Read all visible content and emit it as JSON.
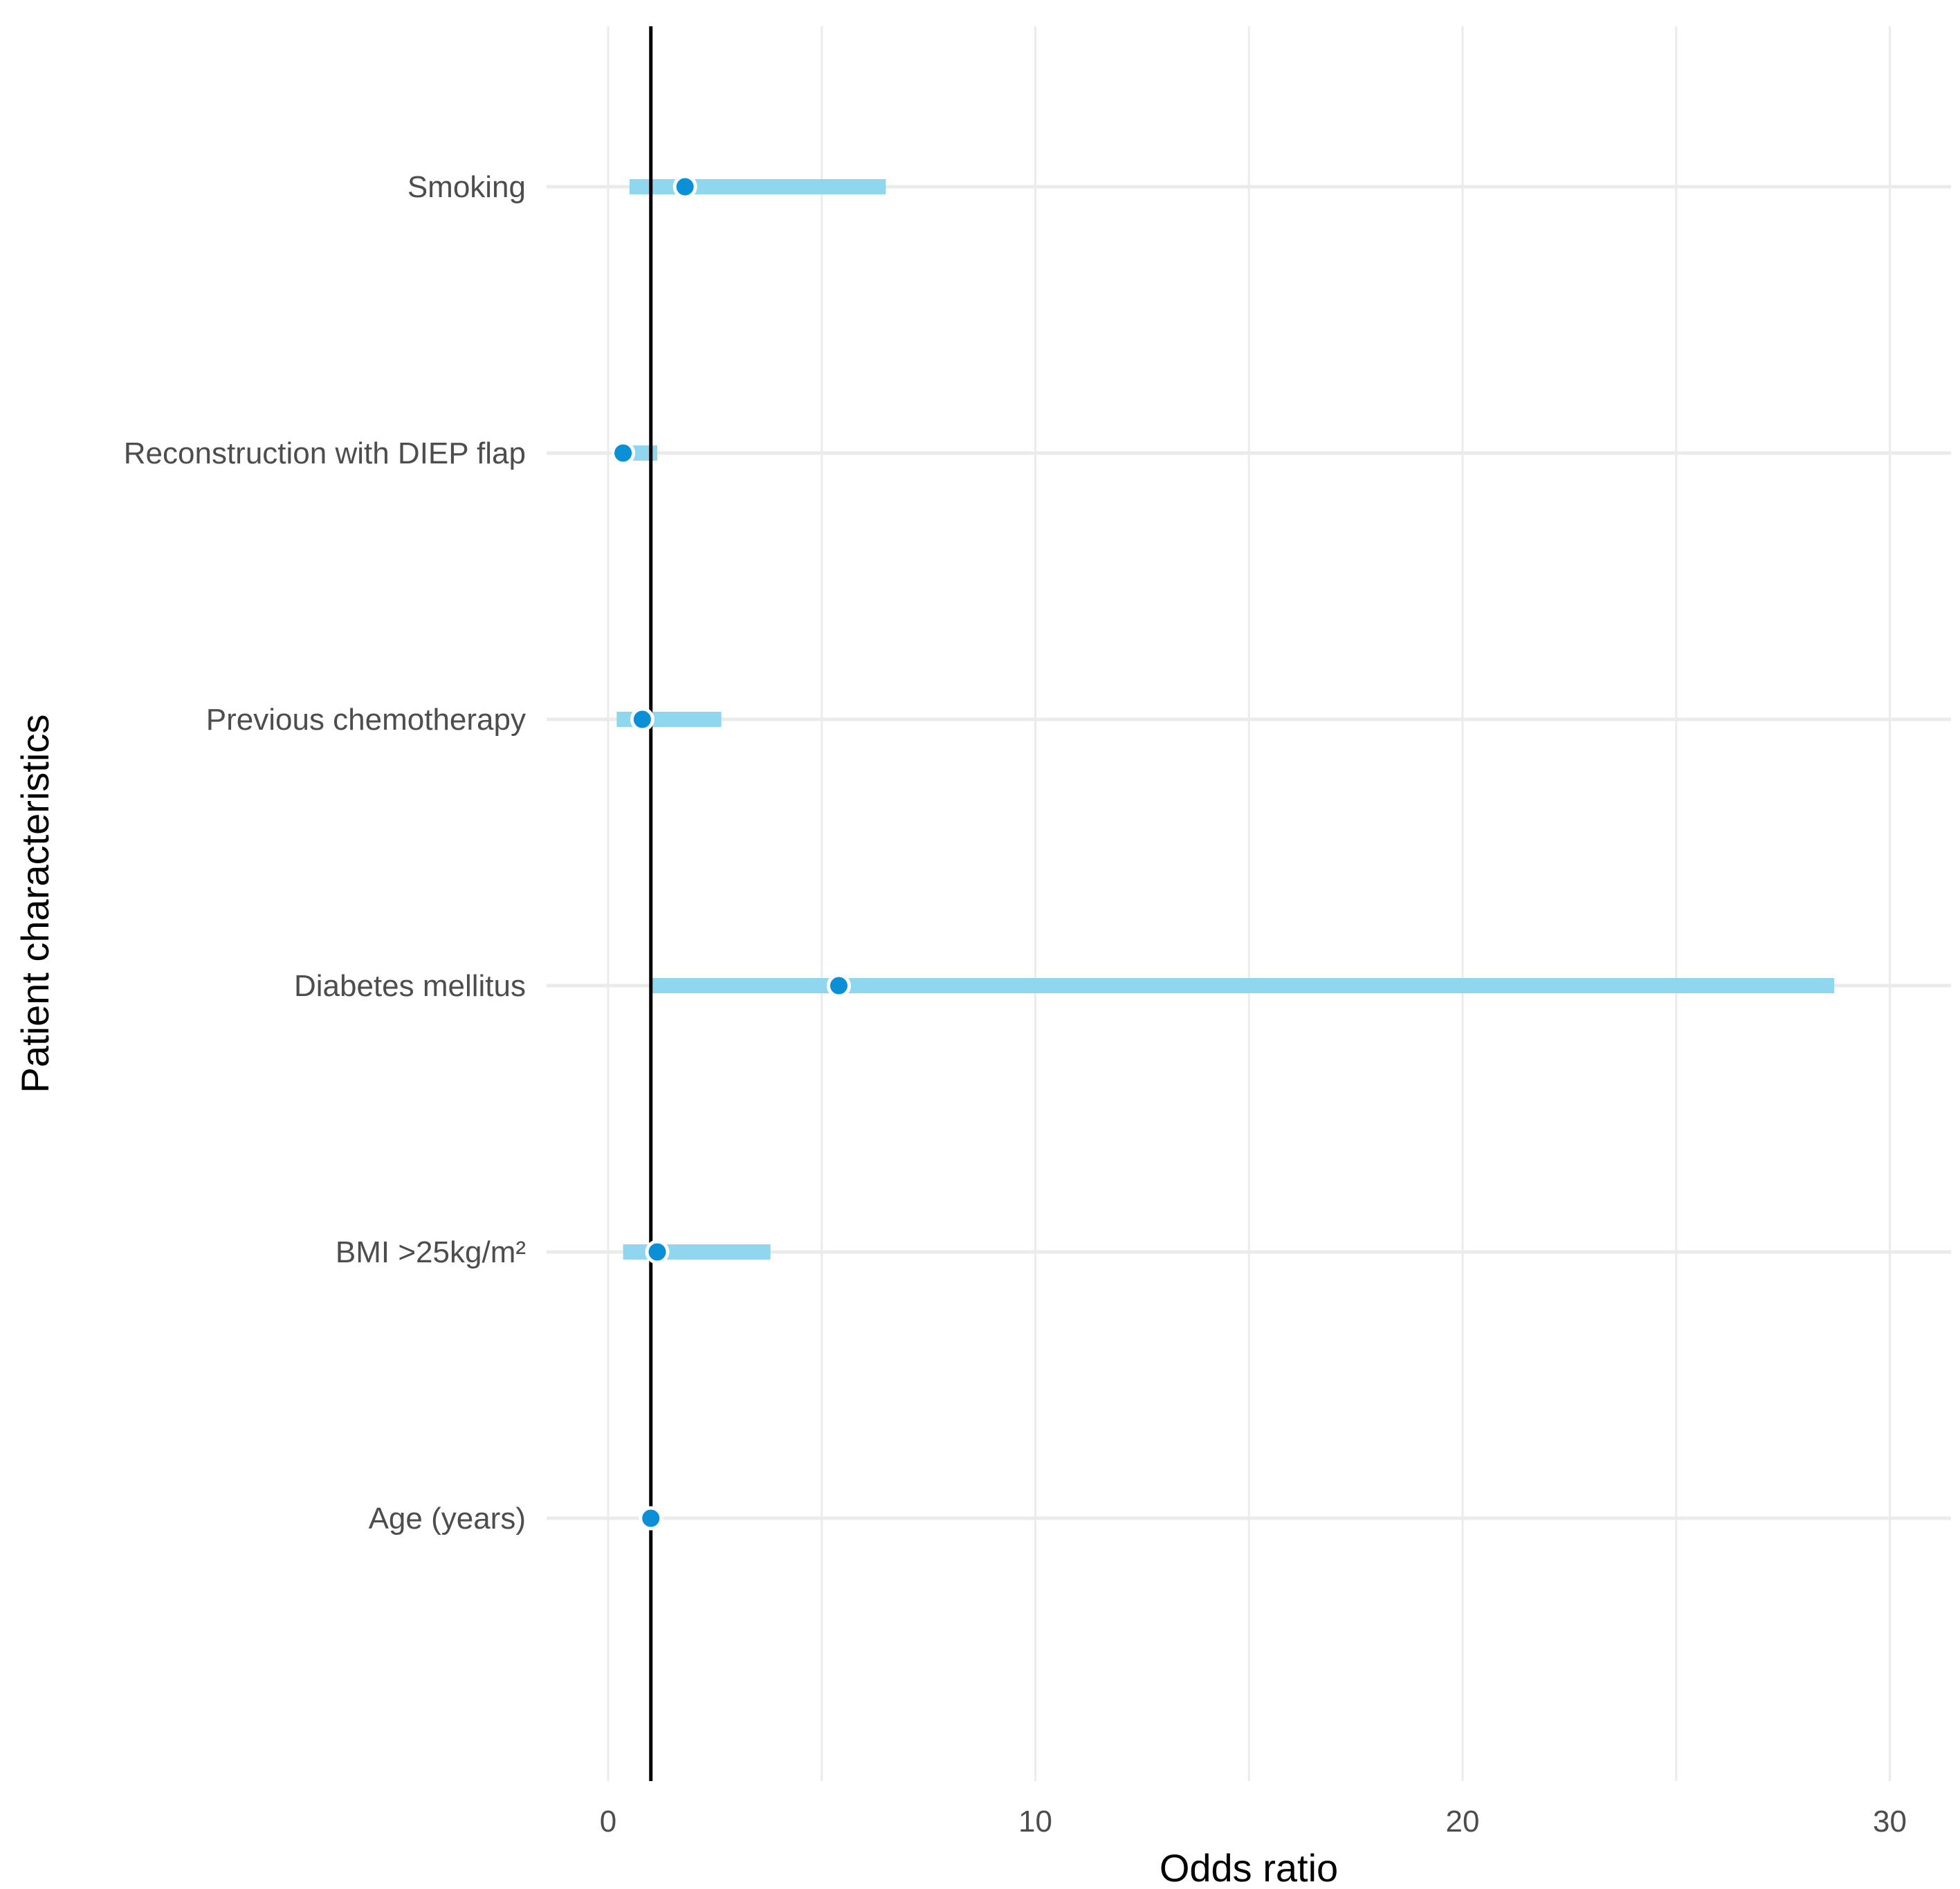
{
  "chart_data": {
    "type": "forest",
    "title": "",
    "xlabel": "Odds ratio",
    "ylabel": "Patient characteristics",
    "xlim": [
      -1.0,
      31.5
    ],
    "xticks": [
      0,
      10,
      20,
      30
    ],
    "x_minor_gridlines": [
      5,
      15,
      25
    ],
    "reference_line": 1,
    "grid": true,
    "categories": [
      "Smoking",
      "Reconstruction with DIEP flap",
      "Previous chemotherapy",
      "Diabetes mellitus",
      "BMI >25kg/m²",
      "Age (years)"
    ],
    "estimates": [
      1.8,
      0.35,
      0.8,
      5.4,
      1.15,
      1.0
    ],
    "ci_lower": [
      0.5,
      0.2,
      0.2,
      1.0,
      0.35,
      0.97
    ],
    "ci_upper": [
      6.5,
      1.15,
      2.65,
      28.7,
      3.8,
      1.03
    ],
    "colors": {
      "ci_bar": "#8fd6ee",
      "point": "#0b8fd6",
      "reference": "#000000",
      "grid": "#ebebeb"
    }
  }
}
